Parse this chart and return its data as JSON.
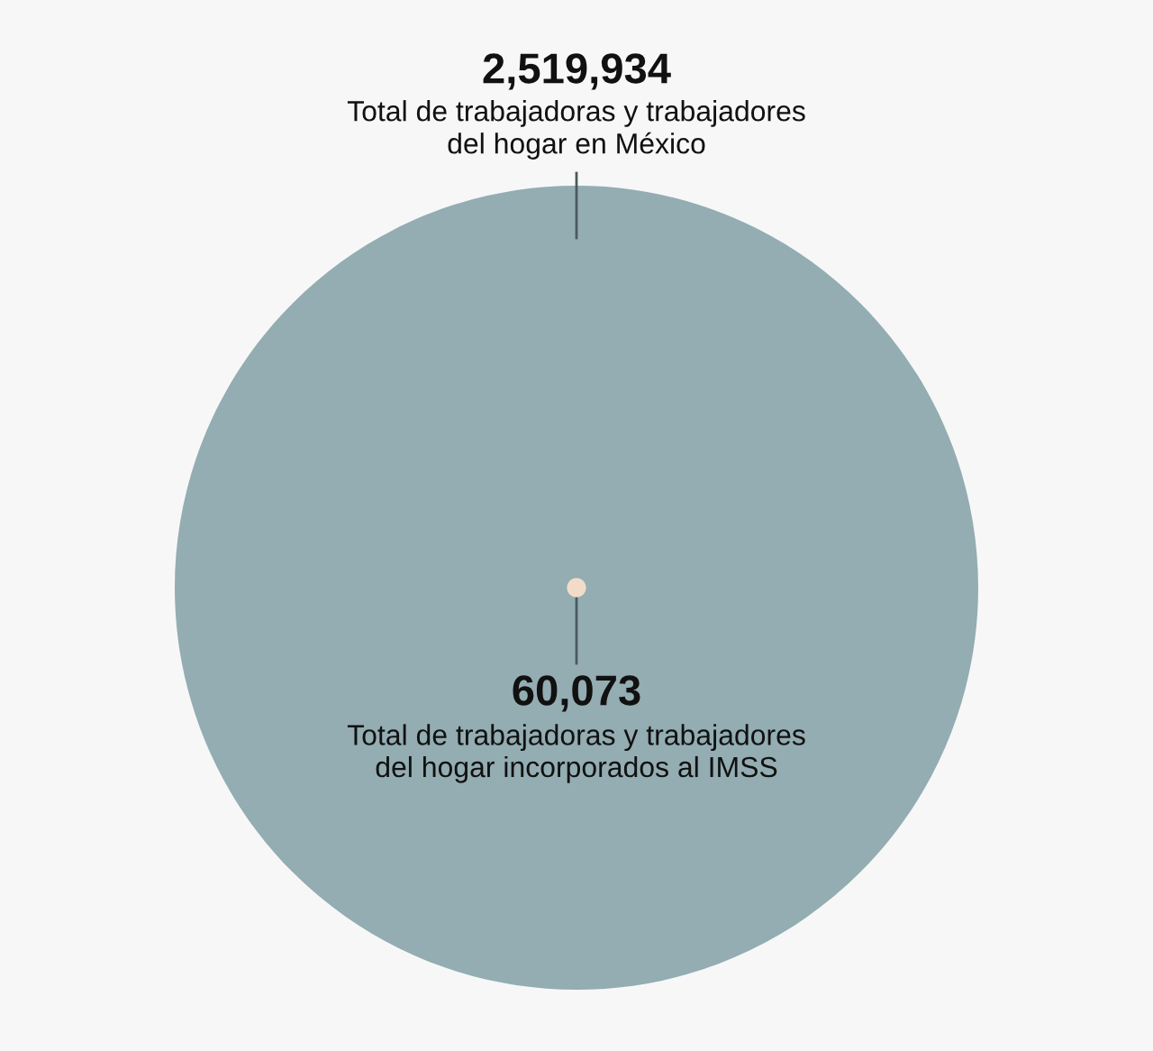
{
  "chart_data": {
    "type": "other",
    "categories": [
      "Total de trabajadoras y trabajadores\ndel hogar en México",
      "Total de trabajadoras y trabajadores\ndel hogar incorporados al IMSS"
    ],
    "values": [
      2519934,
      60073
    ],
    "value_labels": [
      "2,519,934",
      "60,073"
    ],
    "colors": [
      "#93adb2",
      "#f2dcc9"
    ]
  }
}
